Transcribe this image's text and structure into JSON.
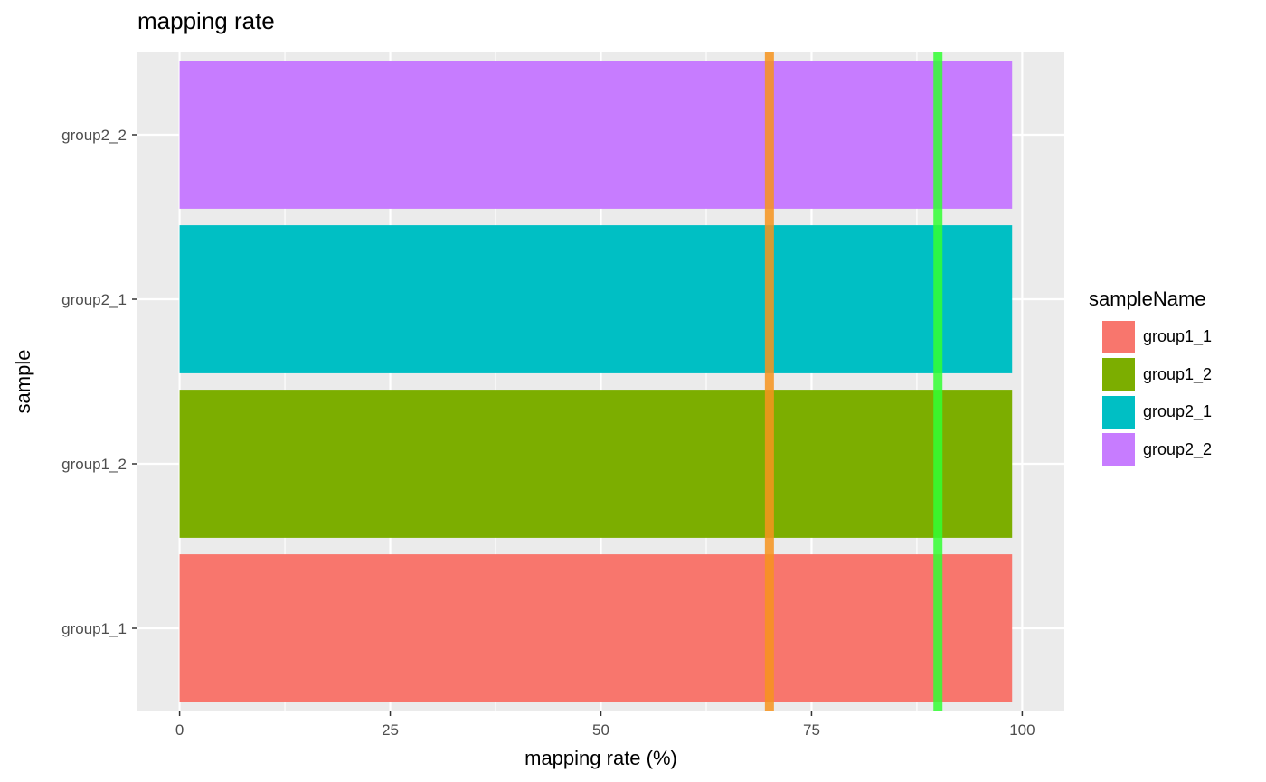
{
  "chart_data": {
    "type": "bar",
    "orientation": "horizontal",
    "title": "mapping rate",
    "xlabel": "mapping rate (%)",
    "ylabel": "sample",
    "categories": [
      "group1_1",
      "group1_2",
      "group2_1",
      "group2_2"
    ],
    "values": [
      98.8,
      98.8,
      98.8,
      98.8
    ],
    "colors": [
      "#F8766D",
      "#7CAE00",
      "#00BFC4",
      "#C77CFF"
    ],
    "xlim": [
      -5,
      105
    ],
    "xticks": [
      0,
      25,
      50,
      75,
      100
    ],
    "xtick_labels": [
      "0",
      "25",
      "50",
      "75",
      "100"
    ],
    "reference_lines": [
      {
        "x": 70,
        "color": "#F7941D"
      },
      {
        "x": 90,
        "color": "#33FF33"
      }
    ],
    "grid": true,
    "legend": {
      "title": "sampleName",
      "position": "right",
      "entries": [
        "group1_1",
        "group1_2",
        "group2_1",
        "group2_2"
      ]
    }
  }
}
